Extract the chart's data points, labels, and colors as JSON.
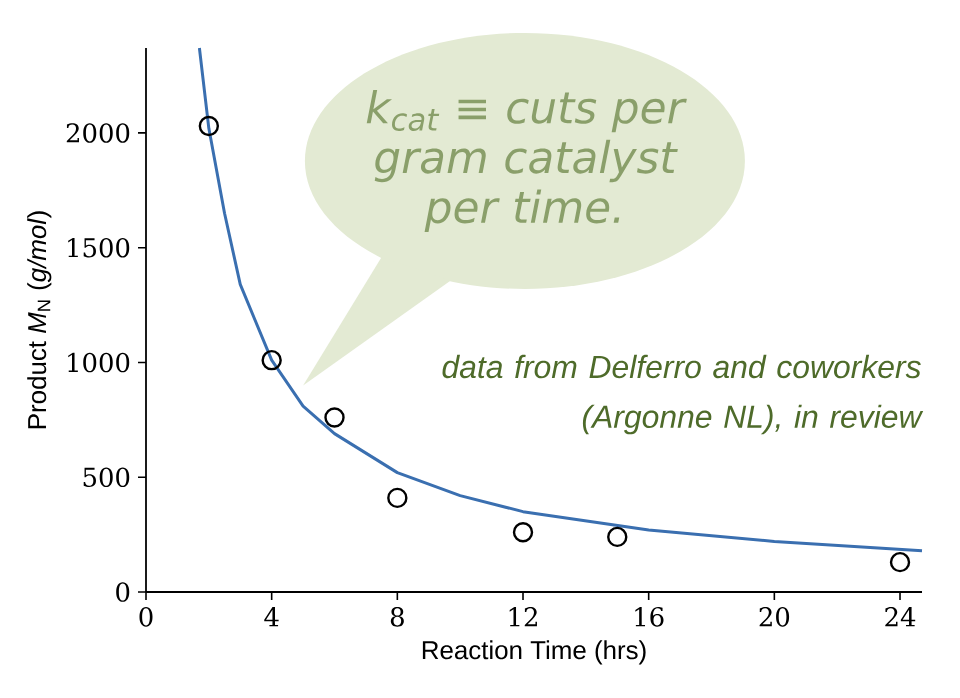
{
  "chart_data": {
    "type": "scatter",
    "xlabel": "Reaction Time (hrs)",
    "ylabel": "Product *M*$_{N}$ (*g/mol*)",
    "xlim": [
      0,
      24.7
    ],
    "ylim": [
      0,
      2370
    ],
    "xticks": [
      0,
      4,
      8,
      12,
      16,
      20,
      24
    ],
    "yticks": [
      0,
      500,
      1000,
      1500,
      2000
    ],
    "grid": false,
    "series": [
      {
        "color": "#000000",
        "marker": "circle",
        "x": [
          2,
          4,
          6,
          8,
          12,
          15,
          24
        ],
        "values": [
          2030,
          1010,
          760,
          410,
          260,
          240,
          130
        ]
      },
      {
        "type": "line",
        "color": "#3a6fb0",
        "marker": "none",
        "x": [
          1.7,
          2,
          2.5,
          3,
          4,
          5,
          6,
          8,
          10,
          12,
          16,
          20,
          24.7
        ],
        "values": [
          2370,
          2020,
          1650,
          1340,
          1010,
          810,
          690,
          520,
          420,
          350,
          270,
          220,
          180
        ]
      }
    ],
    "annotations": [
      "k$_{cat}$ ≡ cuts per gram catalyst per time.",
      "data from Delferro and coworkers (Argonne NL), in review"
    ]
  }
}
